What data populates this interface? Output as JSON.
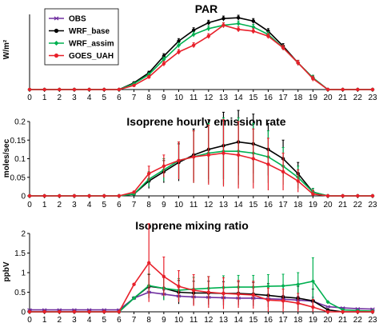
{
  "colors": {
    "OBS": "#7030a0",
    "WRF_base": "#000000",
    "WRF_assim": "#00b050",
    "GOES_UAH": "#e8202a"
  },
  "legend": [
    "OBS",
    "WRF_base",
    "WRF_assim",
    "GOES_UAH"
  ],
  "chart_data": [
    {
      "type": "line",
      "title": "PAR",
      "ylabel": "W/m²",
      "x": [
        0,
        1,
        2,
        3,
        4,
        5,
        6,
        7,
        8,
        9,
        10,
        11,
        12,
        13,
        14,
        15,
        16,
        17,
        18,
        19,
        20,
        21,
        22,
        23
      ],
      "ylim": [
        0,
        450
      ],
      "series": [
        {
          "name": "WRF_base",
          "values": [
            0,
            0,
            0,
            0,
            0,
            0,
            0,
            40,
            100,
            200,
            290,
            355,
            400,
            425,
            430,
            410,
            350,
            260,
            160,
            70,
            0,
            0,
            0,
            0
          ],
          "err": [
            0,
            0,
            0,
            0,
            0,
            0,
            0,
            0,
            10,
            15,
            15,
            15,
            15,
            15,
            15,
            15,
            15,
            15,
            15,
            15,
            0,
            0,
            0,
            0
          ]
        },
        {
          "name": "WRF_assim",
          "values": [
            0,
            0,
            0,
            0,
            0,
            0,
            0,
            35,
            90,
            180,
            265,
            330,
            365,
            385,
            395,
            375,
            330,
            250,
            160,
            70,
            0,
            0,
            0,
            0
          ],
          "err": [
            0,
            0,
            0,
            0,
            0,
            0,
            0,
            0,
            10,
            15,
            15,
            15,
            15,
            15,
            15,
            15,
            15,
            15,
            15,
            15,
            0,
            0,
            0,
            0
          ]
        },
        {
          "name": "GOES_UAH",
          "values": [
            0,
            0,
            0,
            0,
            0,
            0,
            0,
            25,
            75,
            155,
            225,
            265,
            320,
            385,
            360,
            350,
            320,
            250,
            160,
            65,
            0,
            0,
            0,
            0
          ],
          "err": [
            0,
            0,
            0,
            0,
            0,
            0,
            0,
            0,
            10,
            15,
            15,
            15,
            15,
            15,
            15,
            15,
            15,
            15,
            15,
            15,
            0,
            0,
            0,
            0
          ]
        }
      ]
    },
    {
      "type": "line",
      "title": "Isoprene hourly emission rate",
      "ylabel": "moles/sec",
      "x": [
        0,
        1,
        2,
        3,
        4,
        5,
        6,
        7,
        8,
        9,
        10,
        11,
        12,
        13,
        14,
        15,
        16,
        17,
        18,
        19,
        20,
        21,
        22,
        23
      ],
      "ylim": [
        0,
        0.2
      ],
      "series": [
        {
          "name": "WRF_base",
          "values": [
            0,
            0,
            0,
            0,
            0,
            0,
            0,
            0.005,
            0.04,
            0.065,
            0.09,
            0.11,
            0.125,
            0.135,
            0.145,
            0.14,
            0.125,
            0.1,
            0.06,
            0.01,
            0,
            0,
            0,
            0
          ],
          "err": [
            0,
            0,
            0,
            0,
            0,
            0,
            0,
            0,
            0.02,
            0.03,
            0.05,
            0.07,
            0.08,
            0.09,
            0.09,
            0.08,
            0.07,
            0.05,
            0.03,
            0.01,
            0,
            0,
            0,
            0
          ]
        },
        {
          "name": "WRF_assim",
          "values": [
            0,
            0,
            0,
            0,
            0,
            0,
            0,
            0.005,
            0.045,
            0.07,
            0.095,
            0.105,
            0.115,
            0.12,
            0.12,
            0.115,
            0.105,
            0.08,
            0.05,
            0.01,
            0,
            0,
            0,
            0
          ],
          "err": [
            0,
            0,
            0,
            0,
            0,
            0,
            0,
            0,
            0.02,
            0.03,
            0.05,
            0.07,
            0.08,
            0.09,
            0.09,
            0.08,
            0.07,
            0.05,
            0.03,
            0.01,
            0,
            0,
            0,
            0
          ]
        },
        {
          "name": "GOES_UAH",
          "values": [
            0,
            0,
            0,
            0,
            0,
            0,
            0,
            0.01,
            0.06,
            0.08,
            0.095,
            0.105,
            0.11,
            0.115,
            0.11,
            0.1,
            0.085,
            0.065,
            0.04,
            0.005,
            0,
            0,
            0,
            0
          ],
          "err": [
            0,
            0,
            0,
            0,
            0,
            0,
            0,
            0,
            0.02,
            0.03,
            0.05,
            0.07,
            0.08,
            0.09,
            0.09,
            0.08,
            0.07,
            0.05,
            0.03,
            0.01,
            0,
            0,
            0,
            0
          ]
        }
      ]
    },
    {
      "type": "line",
      "title": "Isoprene mixing ratio",
      "ylabel": "ppbV",
      "x": [
        0,
        1,
        2,
        3,
        4,
        5,
        6,
        7,
        8,
        9,
        10,
        11,
        12,
        13,
        14,
        15,
        16,
        17,
        18,
        19,
        20,
        21,
        22,
        23
      ],
      "ylim": [
        0,
        2
      ],
      "series": [
        {
          "name": "OBS",
          "values": [
            0.05,
            0.05,
            0.05,
            0.05,
            0.05,
            0.05,
            0.05,
            0.35,
            0.5,
            0.45,
            0.4,
            0.38,
            0.37,
            0.36,
            0.35,
            0.35,
            0.33,
            0.32,
            0.3,
            0.27,
            0.13,
            0.1,
            0.08,
            0.07
          ],
          "err": [
            0,
            0,
            0,
            0,
            0,
            0,
            0,
            0,
            0.1,
            0.1,
            0.1,
            0.1,
            0.1,
            0.1,
            0.1,
            0.1,
            0.1,
            0.1,
            0.1,
            0.1,
            0,
            0,
            0,
            0
          ]
        },
        {
          "name": "WRF_base",
          "values": [
            0,
            0,
            0,
            0,
            0,
            0,
            0,
            0.35,
            0.65,
            0.6,
            0.5,
            0.48,
            0.48,
            0.47,
            0.47,
            0.45,
            0.42,
            0.38,
            0.35,
            0.28,
            0.05,
            0,
            0,
            0
          ],
          "err": [
            0,
            0,
            0,
            0,
            0,
            0,
            0,
            0,
            0.3,
            0.3,
            0.3,
            0.3,
            0.3,
            0.3,
            0.3,
            0.3,
            0.3,
            0.3,
            0.3,
            0.3,
            0,
            0,
            0,
            0
          ]
        },
        {
          "name": "WRF_assim",
          "values": [
            0,
            0,
            0,
            0,
            0,
            0,
            0,
            0.35,
            0.67,
            0.6,
            0.55,
            0.58,
            0.6,
            0.62,
            0.63,
            0.63,
            0.65,
            0.66,
            0.7,
            0.78,
            0.25,
            0.05,
            0.03,
            0.02
          ],
          "err": [
            0,
            0,
            0,
            0,
            0,
            0,
            0,
            0,
            0.3,
            0.3,
            0.3,
            0.3,
            0.3,
            0.3,
            0.3,
            0.3,
            0.3,
            0.3,
            0.3,
            0.6,
            0,
            0,
            0,
            0
          ]
        },
        {
          "name": "GOES_UAH",
          "values": [
            0,
            0,
            0,
            0,
            0,
            0,
            0,
            0.7,
            1.25,
            0.9,
            0.65,
            0.55,
            0.5,
            0.47,
            0.45,
            0.43,
            0.3,
            0.28,
            0.22,
            0.12,
            0,
            0,
            0,
            0
          ],
          "err": [
            0,
            0,
            0,
            0,
            0,
            0,
            0,
            0,
            1.0,
            0.5,
            0.4,
            0.4,
            0.4,
            0.4,
            0.35,
            0.35,
            0.3,
            0.3,
            0.25,
            0.2,
            0,
            0,
            0,
            0
          ]
        }
      ]
    }
  ]
}
